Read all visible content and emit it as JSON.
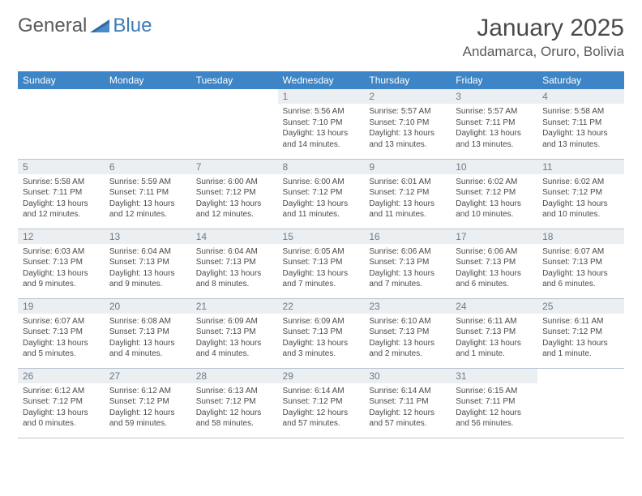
{
  "brand": {
    "word1": "General",
    "word2": "Blue"
  },
  "title": "January 2025",
  "location": "Andamarca, Oruro, Bolivia",
  "colors": {
    "header_bg": "#3d85c6",
    "header_text": "#ffffff",
    "daynum_bg": "#eceff1",
    "daynum_text": "#6b7b8a",
    "body_text": "#4a4a4a",
    "rule": "#b8c4d0",
    "brand_gray": "#5a5a5a",
    "brand_blue": "#3d7bb8"
  },
  "fonts": {
    "title_pt": 30,
    "location_pt": 17,
    "weekday_pt": 12,
    "daynum_pt": 12,
    "cell_pt": 10
  },
  "weekdays": [
    "Sunday",
    "Monday",
    "Tuesday",
    "Wednesday",
    "Thursday",
    "Friday",
    "Saturday"
  ],
  "weeks": [
    [
      {
        "n": "",
        "sr": "",
        "ss": "",
        "dl": ""
      },
      {
        "n": "",
        "sr": "",
        "ss": "",
        "dl": ""
      },
      {
        "n": "",
        "sr": "",
        "ss": "",
        "dl": ""
      },
      {
        "n": "1",
        "sr": "Sunrise: 5:56 AM",
        "ss": "Sunset: 7:10 PM",
        "dl": "Daylight: 13 hours and 14 minutes."
      },
      {
        "n": "2",
        "sr": "Sunrise: 5:57 AM",
        "ss": "Sunset: 7:10 PM",
        "dl": "Daylight: 13 hours and 13 minutes."
      },
      {
        "n": "3",
        "sr": "Sunrise: 5:57 AM",
        "ss": "Sunset: 7:11 PM",
        "dl": "Daylight: 13 hours and 13 minutes."
      },
      {
        "n": "4",
        "sr": "Sunrise: 5:58 AM",
        "ss": "Sunset: 7:11 PM",
        "dl": "Daylight: 13 hours and 13 minutes."
      }
    ],
    [
      {
        "n": "5",
        "sr": "Sunrise: 5:58 AM",
        "ss": "Sunset: 7:11 PM",
        "dl": "Daylight: 13 hours and 12 minutes."
      },
      {
        "n": "6",
        "sr": "Sunrise: 5:59 AM",
        "ss": "Sunset: 7:11 PM",
        "dl": "Daylight: 13 hours and 12 minutes."
      },
      {
        "n": "7",
        "sr": "Sunrise: 6:00 AM",
        "ss": "Sunset: 7:12 PM",
        "dl": "Daylight: 13 hours and 12 minutes."
      },
      {
        "n": "8",
        "sr": "Sunrise: 6:00 AM",
        "ss": "Sunset: 7:12 PM",
        "dl": "Daylight: 13 hours and 11 minutes."
      },
      {
        "n": "9",
        "sr": "Sunrise: 6:01 AM",
        "ss": "Sunset: 7:12 PM",
        "dl": "Daylight: 13 hours and 11 minutes."
      },
      {
        "n": "10",
        "sr": "Sunrise: 6:02 AM",
        "ss": "Sunset: 7:12 PM",
        "dl": "Daylight: 13 hours and 10 minutes."
      },
      {
        "n": "11",
        "sr": "Sunrise: 6:02 AM",
        "ss": "Sunset: 7:12 PM",
        "dl": "Daylight: 13 hours and 10 minutes."
      }
    ],
    [
      {
        "n": "12",
        "sr": "Sunrise: 6:03 AM",
        "ss": "Sunset: 7:13 PM",
        "dl": "Daylight: 13 hours and 9 minutes."
      },
      {
        "n": "13",
        "sr": "Sunrise: 6:04 AM",
        "ss": "Sunset: 7:13 PM",
        "dl": "Daylight: 13 hours and 9 minutes."
      },
      {
        "n": "14",
        "sr": "Sunrise: 6:04 AM",
        "ss": "Sunset: 7:13 PM",
        "dl": "Daylight: 13 hours and 8 minutes."
      },
      {
        "n": "15",
        "sr": "Sunrise: 6:05 AM",
        "ss": "Sunset: 7:13 PM",
        "dl": "Daylight: 13 hours and 7 minutes."
      },
      {
        "n": "16",
        "sr": "Sunrise: 6:06 AM",
        "ss": "Sunset: 7:13 PM",
        "dl": "Daylight: 13 hours and 7 minutes."
      },
      {
        "n": "17",
        "sr": "Sunrise: 6:06 AM",
        "ss": "Sunset: 7:13 PM",
        "dl": "Daylight: 13 hours and 6 minutes."
      },
      {
        "n": "18",
        "sr": "Sunrise: 6:07 AM",
        "ss": "Sunset: 7:13 PM",
        "dl": "Daylight: 13 hours and 6 minutes."
      }
    ],
    [
      {
        "n": "19",
        "sr": "Sunrise: 6:07 AM",
        "ss": "Sunset: 7:13 PM",
        "dl": "Daylight: 13 hours and 5 minutes."
      },
      {
        "n": "20",
        "sr": "Sunrise: 6:08 AM",
        "ss": "Sunset: 7:13 PM",
        "dl": "Daylight: 13 hours and 4 minutes."
      },
      {
        "n": "21",
        "sr": "Sunrise: 6:09 AM",
        "ss": "Sunset: 7:13 PM",
        "dl": "Daylight: 13 hours and 4 minutes."
      },
      {
        "n": "22",
        "sr": "Sunrise: 6:09 AM",
        "ss": "Sunset: 7:13 PM",
        "dl": "Daylight: 13 hours and 3 minutes."
      },
      {
        "n": "23",
        "sr": "Sunrise: 6:10 AM",
        "ss": "Sunset: 7:13 PM",
        "dl": "Daylight: 13 hours and 2 minutes."
      },
      {
        "n": "24",
        "sr": "Sunrise: 6:11 AM",
        "ss": "Sunset: 7:13 PM",
        "dl": "Daylight: 13 hours and 1 minute."
      },
      {
        "n": "25",
        "sr": "Sunrise: 6:11 AM",
        "ss": "Sunset: 7:12 PM",
        "dl": "Daylight: 13 hours and 1 minute."
      }
    ],
    [
      {
        "n": "26",
        "sr": "Sunrise: 6:12 AM",
        "ss": "Sunset: 7:12 PM",
        "dl": "Daylight: 13 hours and 0 minutes."
      },
      {
        "n": "27",
        "sr": "Sunrise: 6:12 AM",
        "ss": "Sunset: 7:12 PM",
        "dl": "Daylight: 12 hours and 59 minutes."
      },
      {
        "n": "28",
        "sr": "Sunrise: 6:13 AM",
        "ss": "Sunset: 7:12 PM",
        "dl": "Daylight: 12 hours and 58 minutes."
      },
      {
        "n": "29",
        "sr": "Sunrise: 6:14 AM",
        "ss": "Sunset: 7:12 PM",
        "dl": "Daylight: 12 hours and 57 minutes."
      },
      {
        "n": "30",
        "sr": "Sunrise: 6:14 AM",
        "ss": "Sunset: 7:11 PM",
        "dl": "Daylight: 12 hours and 57 minutes."
      },
      {
        "n": "31",
        "sr": "Sunrise: 6:15 AM",
        "ss": "Sunset: 7:11 PM",
        "dl": "Daylight: 12 hours and 56 minutes."
      },
      {
        "n": "",
        "sr": "",
        "ss": "",
        "dl": ""
      }
    ]
  ]
}
